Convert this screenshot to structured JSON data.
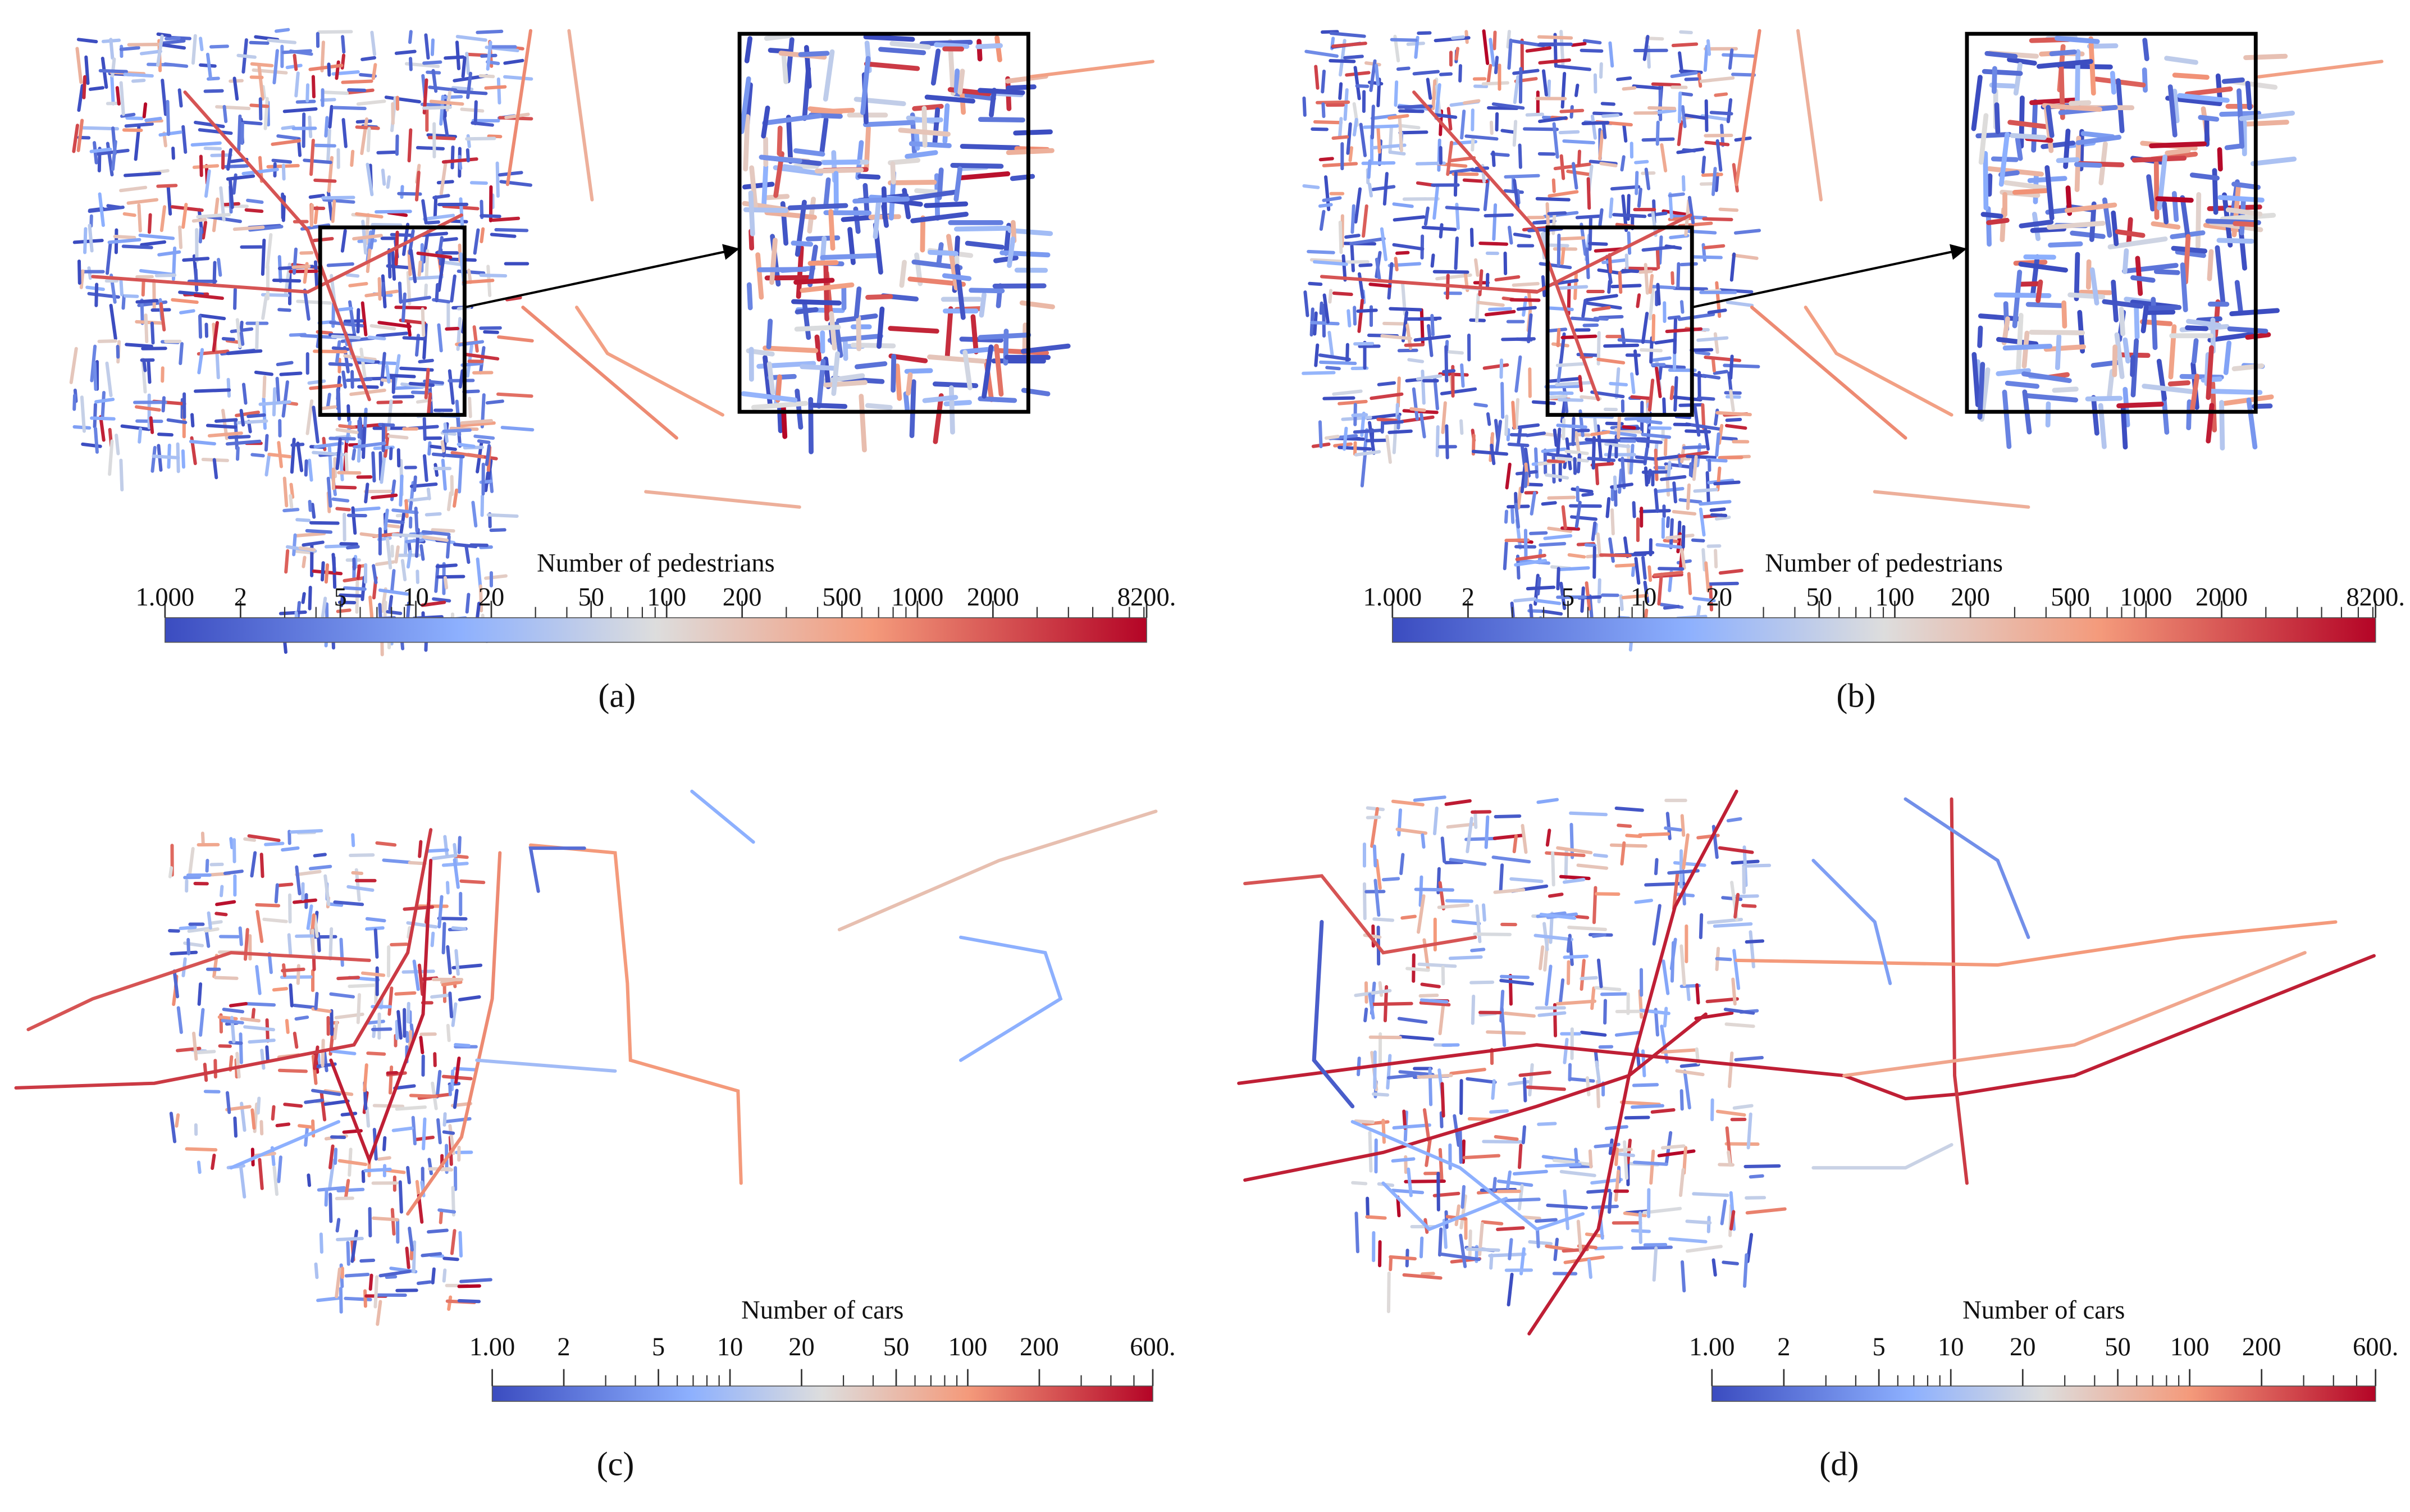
{
  "panels": [
    {
      "label": "(a)",
      "colorbar": {
        "title": "Number of pedestrians",
        "lim": [
          1,
          8200
        ],
        "log": true,
        "ticks": [
          {
            "value": 1,
            "label": "1.000"
          },
          2,
          5,
          10,
          20,
          50,
          100,
          200,
          500,
          1000,
          2000,
          {
            "value": 8200,
            "label": "8200."
          }
        ],
        "minor_ticks": [
          3,
          4,
          6,
          7,
          8,
          9,
          30,
          40,
          60,
          70,
          80,
          90,
          300,
          400,
          600,
          700,
          800,
          900,
          3000,
          4000,
          5000,
          6000,
          7000,
          8000
        ]
      }
    },
    {
      "label": "(b)",
      "colorbar": {
        "title": "Number of pedestrians",
        "lim": [
          1,
          8200
        ],
        "log": true,
        "ticks": [
          {
            "value": 1,
            "label": "1.000"
          },
          2,
          5,
          10,
          20,
          50,
          100,
          200,
          500,
          1000,
          2000,
          {
            "value": 8200,
            "label": "8200."
          }
        ],
        "minor_ticks": [
          3,
          4,
          6,
          7,
          8,
          9,
          30,
          40,
          60,
          70,
          80,
          90,
          300,
          400,
          600,
          700,
          800,
          900,
          3000,
          4000,
          5000,
          6000,
          7000,
          8000
        ]
      }
    },
    {
      "label": "(c)",
      "colorbar": {
        "title": "Number of cars",
        "lim": [
          1,
          600
        ],
        "log": true,
        "ticks": [
          {
            "value": 1,
            "label": "1.00"
          },
          2,
          5,
          10,
          20,
          50,
          100,
          200,
          {
            "value": 600,
            "label": "600."
          }
        ],
        "minor_ticks": [
          3,
          4,
          6,
          7,
          8,
          9,
          30,
          40,
          60,
          70,
          80,
          90,
          300,
          400,
          500
        ]
      }
    },
    {
      "label": "(d)",
      "colorbar": {
        "title": "Number of cars",
        "lim": [
          1,
          600
        ],
        "log": true,
        "ticks": [
          {
            "value": 1,
            "label": "1.00"
          },
          2,
          5,
          10,
          20,
          50,
          100,
          200,
          {
            "value": 600,
            "label": "600."
          }
        ],
        "minor_ticks": [
          3,
          4,
          6,
          7,
          8,
          9,
          30,
          40,
          60,
          70,
          80,
          90,
          300,
          400,
          500
        ]
      }
    }
  ]
}
